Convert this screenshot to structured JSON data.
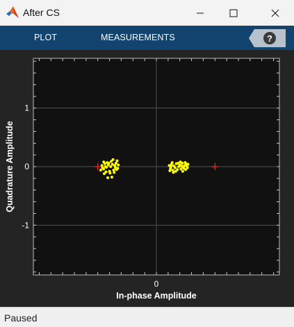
{
  "window": {
    "title": "After CS"
  },
  "toolstrip": {
    "tabs": [
      {
        "label": "PLOT"
      },
      {
        "label": "MEASUREMENTS"
      }
    ],
    "help_icon": "question-mark-icon"
  },
  "plot": {
    "xlabel": "In-phase Amplitude",
    "ylabel": "Quadrature Amplitude",
    "xlim": [
      -2.1,
      2.1
    ],
    "ylim": [
      -1.85,
      1.85
    ],
    "xticks": [
      {
        "value": 0,
        "label": "0"
      }
    ],
    "yticks": [
      {
        "value": 1,
        "label": "1"
      },
      {
        "value": 0,
        "label": "0"
      },
      {
        "value": -1,
        "label": "-1"
      }
    ],
    "grid": true,
    "colors": {
      "background": "#111111",
      "frame": "#242424",
      "grid": "#505050",
      "axis_text": "#ffffff",
      "samples": "#ffff00",
      "reference": "#ff2020"
    }
  },
  "chart_data": {
    "type": "scatter",
    "title": "",
    "xlabel": "In-phase Amplitude",
    "ylabel": "Quadrature Amplitude",
    "xlim": [
      -2.1,
      2.1
    ],
    "ylim": [
      -1.85,
      1.85
    ],
    "grid": true,
    "series": [
      {
        "marker": "dot",
        "color": "#ffff00",
        "points": [
          [
            -0.93,
            0.02
          ],
          [
            -0.9,
            -0.04
          ],
          [
            -0.88,
            0.05
          ],
          [
            -0.85,
            -0.01
          ],
          [
            -0.82,
            0.03
          ],
          [
            -0.8,
            -0.08
          ],
          [
            -0.78,
            0.0
          ],
          [
            -0.9,
            0.08
          ],
          [
            -0.86,
            -0.09
          ],
          [
            -0.84,
            0.07
          ],
          [
            -0.77,
            0.09
          ],
          [
            -0.75,
            0.04
          ],
          [
            -0.73,
            -0.06
          ],
          [
            -0.71,
            0.02
          ],
          [
            -0.69,
            0.06
          ],
          [
            -0.7,
            -0.02
          ],
          [
            -0.67,
            0.1
          ],
          [
            -0.72,
            -0.1
          ],
          [
            -0.68,
            -0.05
          ],
          [
            -0.74,
            0.12
          ],
          [
            -0.83,
            -0.19
          ],
          [
            -0.76,
            -0.18
          ],
          [
            -0.95,
            -0.06
          ],
          [
            -0.89,
            -0.12
          ],
          [
            -0.79,
            -0.11
          ],
          [
            -0.65,
            0.03
          ],
          [
            -0.87,
            0.0
          ],
          [
            -0.81,
            0.06
          ],
          [
            -0.92,
            -0.02
          ],
          [
            -0.66,
            -0.03
          ],
          [
            0.22,
            0.02
          ],
          [
            0.24,
            -0.03
          ],
          [
            0.26,
            0.04
          ],
          [
            0.28,
            -0.06
          ],
          [
            0.3,
            0.01
          ],
          [
            0.32,
            -0.02
          ],
          [
            0.34,
            0.05
          ],
          [
            0.36,
            -0.05
          ],
          [
            0.38,
            0.0
          ],
          [
            0.4,
            0.03
          ],
          [
            0.42,
            -0.04
          ],
          [
            0.44,
            0.06
          ],
          [
            0.46,
            -0.01
          ],
          [
            0.48,
            0.02
          ],
          [
            0.5,
            -0.05
          ],
          [
            0.52,
            0.01
          ],
          [
            0.54,
            0.04
          ],
          [
            0.27,
            0.07
          ],
          [
            0.33,
            -0.08
          ],
          [
            0.41,
            0.08
          ],
          [
            0.45,
            -0.08
          ],
          [
            0.49,
            0.07
          ],
          [
            0.23,
            -0.07
          ],
          [
            0.53,
            -0.02
          ],
          [
            0.37,
            0.06
          ],
          [
            0.29,
            -0.1
          ],
          [
            0.51,
            0.05
          ],
          [
            0.25,
            0.0
          ],
          [
            0.47,
            -0.03
          ],
          [
            0.43,
            0.01
          ]
        ]
      },
      {
        "marker": "plus",
        "color": "#ff2020",
        "points": [
          [
            -1.0,
            0.0
          ],
          [
            1.0,
            0.0
          ]
        ]
      }
    ]
  },
  "status": {
    "text": "Paused"
  }
}
